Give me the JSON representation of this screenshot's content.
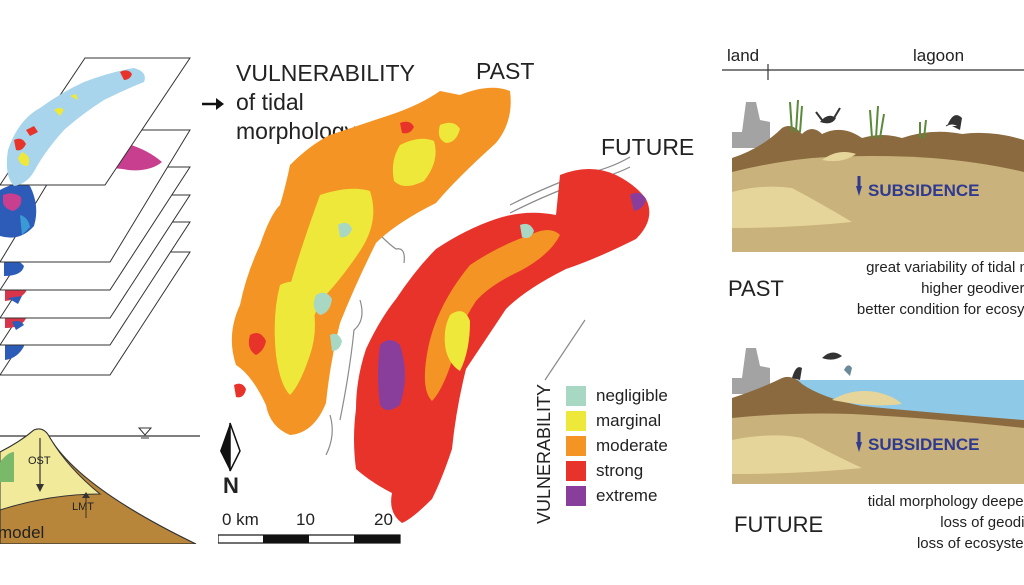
{
  "title": {
    "line1": "VULNERABILITY",
    "line2": "of tidal",
    "line3": "morphology"
  },
  "maps": {
    "past_label": "PAST",
    "future_label": "FUTURE"
  },
  "legend": {
    "axis_label": "VULNERABILITY",
    "items": [
      {
        "label": "negligible",
        "color": "#a8d8c4"
      },
      {
        "label": "marginal",
        "color": "#eee83a"
      },
      {
        "label": "moderate",
        "color": "#f39425"
      },
      {
        "label": "strong",
        "color": "#e8332a"
      },
      {
        "label": "extreme",
        "color": "#8a3e9c"
      }
    ]
  },
  "north_label": "N",
  "scale": {
    "ticks": [
      "0 km",
      "10",
      "20"
    ]
  },
  "model_label": "model",
  "cross_section": {
    "ost": "OST",
    "lmt": "LMT"
  },
  "profile": {
    "land": "land",
    "lagoon": "lagoon",
    "subsidence_past": "SUBSIDENCE",
    "subsidence_future": "SUBSIDENCE",
    "past_label": "PAST",
    "future_label": "FUTURE",
    "past_notes": [
      "great variability of tidal m",
      "higher geodivers",
      "better condition for ecosys"
    ],
    "future_notes": [
      "tidal morphology deepen",
      "loss of geodiv",
      "loss of ecosysten"
    ]
  },
  "colors": {
    "water": "#8ec9e8",
    "land_grey": "#a3a3a3",
    "sediment": "#c9b27c",
    "sediment_light": "#e6d59a",
    "arrow": "#2f3a8f"
  }
}
